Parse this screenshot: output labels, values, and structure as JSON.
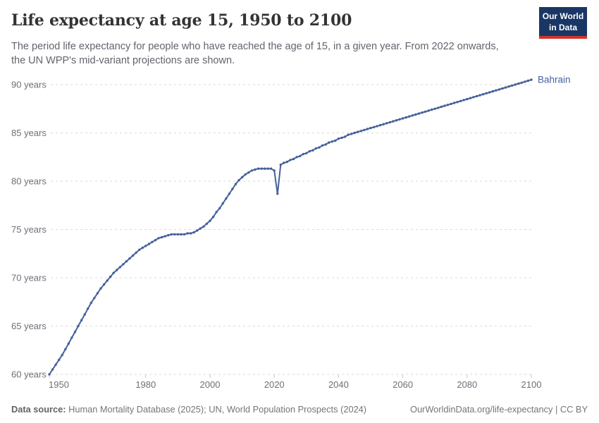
{
  "header": {
    "title": "Life expectancy at age 15, 1950 to 2100",
    "subtitle_line1": "The period life expectancy for people who have reached the age of 15, in a given year. From 2022 onwards,",
    "subtitle_line2": "the UN WPP's mid-variant projections are shown.",
    "logo": {
      "line1": "Our World",
      "line2": "in Data",
      "bg_color": "#1A3665",
      "stripe_color": "#D0342C"
    }
  },
  "footer": {
    "data_source_label": "Data source:",
    "data_source_text": "Human Mortality Database (2025); UN, World Population Prospects (2024)",
    "license_text": "OurWorldinData.org/life-expectancy | CC BY"
  },
  "chart_data": {
    "type": "line",
    "title": "Life expectancy at age 15, 1950 to 2100",
    "entity": "Bahrain",
    "line_color": "#44619B",
    "grid": "dashed-horizontal",
    "legend_position": "end-of-line-label",
    "xlim": [
      1950,
      2100
    ],
    "ylim": [
      60,
      90
    ],
    "y_unit": "years",
    "yticks": [
      60,
      65,
      70,
      75,
      80,
      85,
      90
    ],
    "xticks": [
      1950,
      1980,
      2000,
      2020,
      2040,
      2060,
      2080,
      2100
    ],
    "projection_note": "From 2022 onwards values are UN WPP mid-variant projections",
    "series": [
      {
        "name": "Bahrain",
        "points": [
          [
            1950,
            60.0
          ],
          [
            1951,
            60.5
          ],
          [
            1952,
            61.0
          ],
          [
            1953,
            61.5
          ],
          [
            1954,
            62.0
          ],
          [
            1955,
            62.6
          ],
          [
            1956,
            63.2
          ],
          [
            1957,
            63.8
          ],
          [
            1958,
            64.4
          ],
          [
            1959,
            65.0
          ],
          [
            1960,
            65.6
          ],
          [
            1961,
            66.2
          ],
          [
            1962,
            66.8
          ],
          [
            1963,
            67.4
          ],
          [
            1964,
            67.9
          ],
          [
            1965,
            68.4
          ],
          [
            1966,
            68.9
          ],
          [
            1967,
            69.3
          ],
          [
            1968,
            69.7
          ],
          [
            1969,
            70.1
          ],
          [
            1970,
            70.5
          ],
          [
            1971,
            70.8
          ],
          [
            1972,
            71.1
          ],
          [
            1973,
            71.4
          ],
          [
            1974,
            71.7
          ],
          [
            1975,
            72.0
          ],
          [
            1976,
            72.3
          ],
          [
            1977,
            72.6
          ],
          [
            1978,
            72.9
          ],
          [
            1979,
            73.1
          ],
          [
            1980,
            73.3
          ],
          [
            1981,
            73.5
          ],
          [
            1982,
            73.7
          ],
          [
            1983,
            73.9
          ],
          [
            1984,
            74.1
          ],
          [
            1985,
            74.2
          ],
          [
            1986,
            74.3
          ],
          [
            1987,
            74.4
          ],
          [
            1988,
            74.5
          ],
          [
            1989,
            74.5
          ],
          [
            1990,
            74.5
          ],
          [
            1991,
            74.5
          ],
          [
            1992,
            74.5
          ],
          [
            1993,
            74.6
          ],
          [
            1994,
            74.6
          ],
          [
            1995,
            74.7
          ],
          [
            1996,
            74.9
          ],
          [
            1997,
            75.1
          ],
          [
            1998,
            75.3
          ],
          [
            1999,
            75.6
          ],
          [
            2000,
            75.9
          ],
          [
            2001,
            76.3
          ],
          [
            2002,
            76.8
          ],
          [
            2003,
            77.2
          ],
          [
            2004,
            77.7
          ],
          [
            2005,
            78.2
          ],
          [
            2006,
            78.7
          ],
          [
            2007,
            79.2
          ],
          [
            2008,
            79.7
          ],
          [
            2009,
            80.1
          ],
          [
            2010,
            80.4
          ],
          [
            2011,
            80.7
          ],
          [
            2012,
            80.9
          ],
          [
            2013,
            81.1
          ],
          [
            2014,
            81.2
          ],
          [
            2015,
            81.3
          ],
          [
            2016,
            81.3
          ],
          [
            2017,
            81.3
          ],
          [
            2018,
            81.3
          ],
          [
            2019,
            81.3
          ],
          [
            2020,
            81.1
          ],
          [
            2021,
            78.7
          ],
          [
            2022,
            81.7
          ],
          [
            2023,
            81.9
          ],
          [
            2024,
            82.0
          ],
          [
            2025,
            82.2
          ],
          [
            2026,
            82.3
          ],
          [
            2027,
            82.5
          ],
          [
            2028,
            82.6
          ],
          [
            2029,
            82.8
          ],
          [
            2030,
            82.9
          ],
          [
            2031,
            83.1
          ],
          [
            2032,
            83.2
          ],
          [
            2033,
            83.4
          ],
          [
            2034,
            83.5
          ],
          [
            2035,
            83.7
          ],
          [
            2036,
            83.8
          ],
          [
            2037,
            84.0
          ],
          [
            2038,
            84.1
          ],
          [
            2039,
            84.2
          ],
          [
            2040,
            84.4
          ],
          [
            2041,
            84.5
          ],
          [
            2042,
            84.6
          ],
          [
            2043,
            84.8
          ],
          [
            2044,
            84.9
          ],
          [
            2045,
            85.0
          ],
          [
            2046,
            85.1
          ],
          [
            2047,
            85.2
          ],
          [
            2048,
            85.3
          ],
          [
            2049,
            85.4
          ],
          [
            2050,
            85.5
          ],
          [
            2051,
            85.6
          ],
          [
            2052,
            85.7
          ],
          [
            2053,
            85.8
          ],
          [
            2054,
            85.9
          ],
          [
            2055,
            86.0
          ],
          [
            2056,
            86.1
          ],
          [
            2057,
            86.2
          ],
          [
            2058,
            86.3
          ],
          [
            2059,
            86.4
          ],
          [
            2060,
            86.5
          ],
          [
            2061,
            86.6
          ],
          [
            2062,
            86.7
          ],
          [
            2063,
            86.8
          ],
          [
            2064,
            86.9
          ],
          [
            2065,
            87.0
          ],
          [
            2066,
            87.1
          ],
          [
            2067,
            87.2
          ],
          [
            2068,
            87.3
          ],
          [
            2069,
            87.4
          ],
          [
            2070,
            87.5
          ],
          [
            2071,
            87.6
          ],
          [
            2072,
            87.7
          ],
          [
            2073,
            87.8
          ],
          [
            2074,
            87.9
          ],
          [
            2075,
            88.0
          ],
          [
            2076,
            88.1
          ],
          [
            2077,
            88.2
          ],
          [
            2078,
            88.3
          ],
          [
            2079,
            88.4
          ],
          [
            2080,
            88.5
          ],
          [
            2081,
            88.6
          ],
          [
            2082,
            88.7
          ],
          [
            2083,
            88.8
          ],
          [
            2084,
            88.9
          ],
          [
            2085,
            89.0
          ],
          [
            2086,
            89.1
          ],
          [
            2087,
            89.2
          ],
          [
            2088,
            89.3
          ],
          [
            2089,
            89.4
          ],
          [
            2090,
            89.5
          ],
          [
            2091,
            89.6
          ],
          [
            2092,
            89.7
          ],
          [
            2093,
            89.8
          ],
          [
            2094,
            89.9
          ],
          [
            2095,
            90.0
          ],
          [
            2096,
            90.1
          ],
          [
            2097,
            90.2
          ],
          [
            2098,
            90.3
          ],
          [
            2099,
            90.4
          ],
          [
            2100,
            90.5
          ]
        ]
      }
    ]
  }
}
